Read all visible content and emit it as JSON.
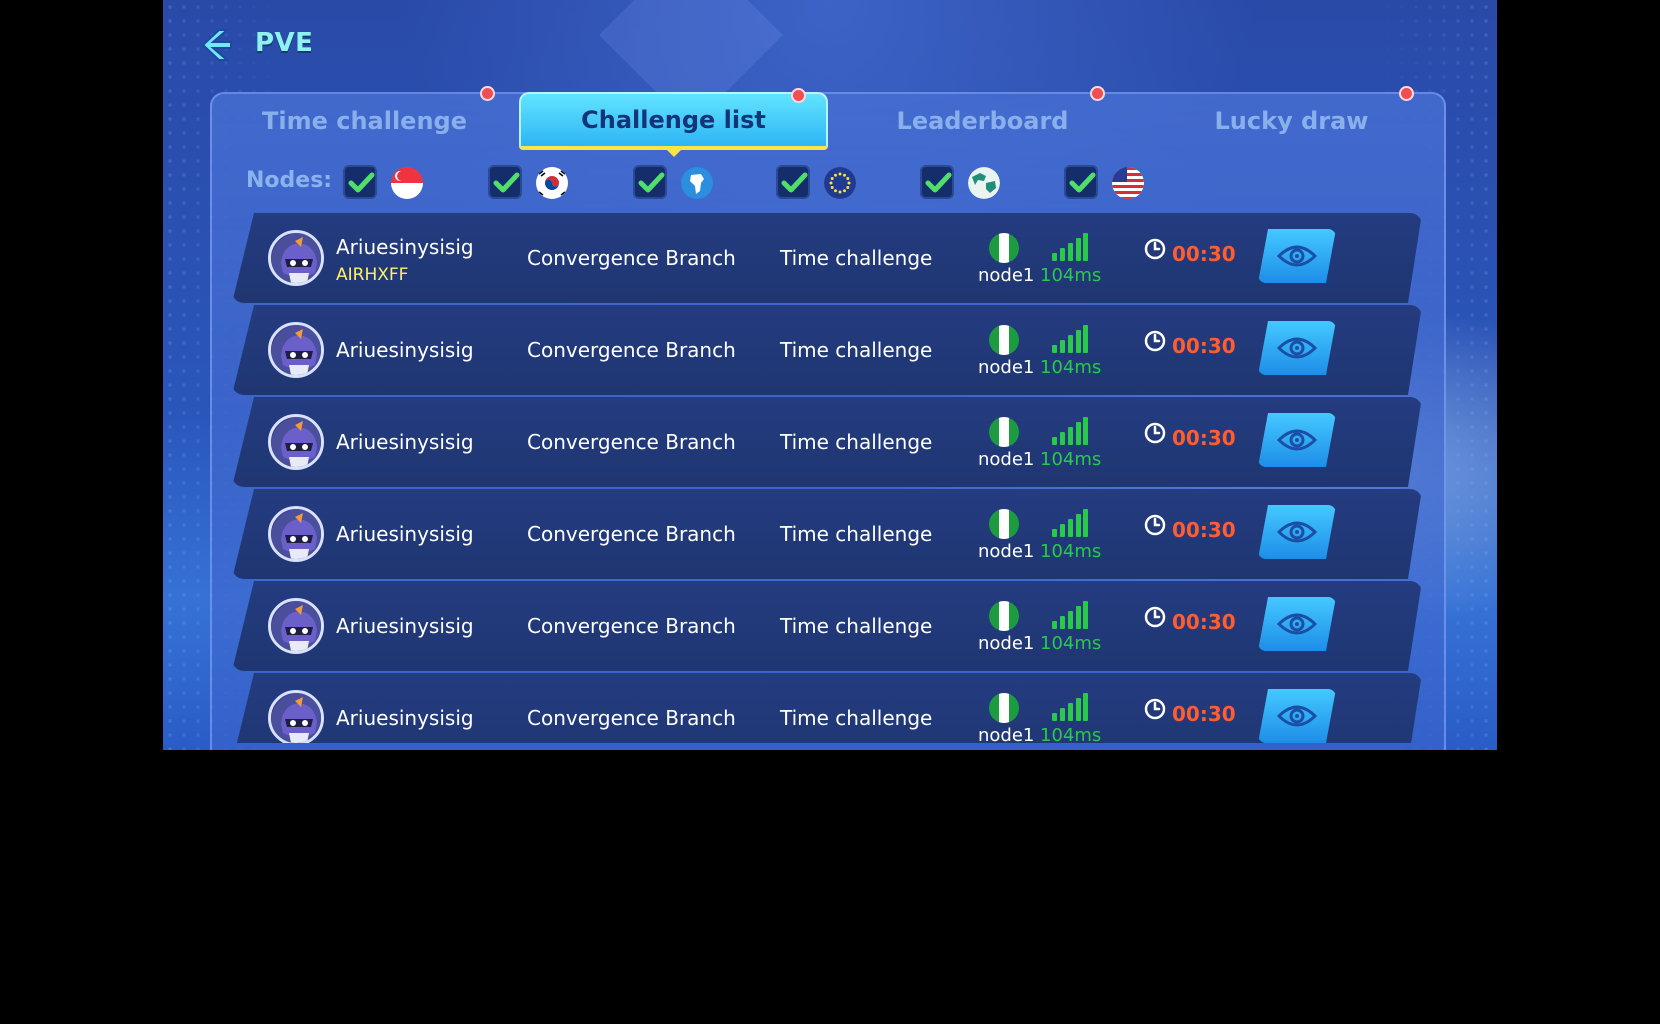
{
  "header": {
    "title": "PVE",
    "back_icon": "back-arrow-icon"
  },
  "tabs": [
    {
      "label": "Time challenge",
      "active": false,
      "badge": true
    },
    {
      "label": "Challenge list",
      "active": true,
      "badge": true
    },
    {
      "label": "Leaderboard",
      "active": false,
      "badge": true
    },
    {
      "label": "Lucky draw",
      "active": false,
      "badge": true
    }
  ],
  "nodes": {
    "label": "Nodes:",
    "options": [
      {
        "checked": true,
        "flag": "singapore-flag-icon"
      },
      {
        "checked": true,
        "flag": "south-korea-flag-icon"
      },
      {
        "checked": true,
        "flag": "africa-globe-icon"
      },
      {
        "checked": true,
        "flag": "europe-flag-icon"
      },
      {
        "checked": true,
        "flag": "asia-globe-icon"
      },
      {
        "checked": true,
        "flag": "usa-flag-icon"
      }
    ]
  },
  "rows": [
    {
      "name": "Ariuesinysisig",
      "tag": "AIRHXFF",
      "branch": "Convergence Branch",
      "mode": "Time challenge",
      "node": "node1",
      "latency": "104ms",
      "time": "00:30"
    },
    {
      "name": "Ariuesinysisig",
      "tag": "",
      "branch": "Convergence Branch",
      "mode": "Time challenge",
      "node": "node1",
      "latency": "104ms",
      "time": "00:30"
    },
    {
      "name": "Ariuesinysisig",
      "tag": "",
      "branch": "Convergence Branch",
      "mode": "Time challenge",
      "node": "node1",
      "latency": "104ms",
      "time": "00:30"
    },
    {
      "name": "Ariuesinysisig",
      "tag": "",
      "branch": "Convergence Branch",
      "mode": "Time challenge",
      "node": "node1",
      "latency": "104ms",
      "time": "00:30"
    },
    {
      "name": "Ariuesinysisig",
      "tag": "",
      "branch": "Convergence Branch",
      "mode": "Time challenge",
      "node": "node1",
      "latency": "104ms",
      "time": "00:30"
    },
    {
      "name": "Ariuesinysisig",
      "tag": "",
      "branch": "Convergence Branch",
      "mode": "Time challenge",
      "node": "node1",
      "latency": "104ms",
      "time": "00:30"
    }
  ],
  "colors": {
    "name": "#ffffff",
    "tag": "#ffef6b",
    "latency": "#2ac84b",
    "timer": "#ff5d31",
    "active_tab": "#2eb5f4"
  }
}
